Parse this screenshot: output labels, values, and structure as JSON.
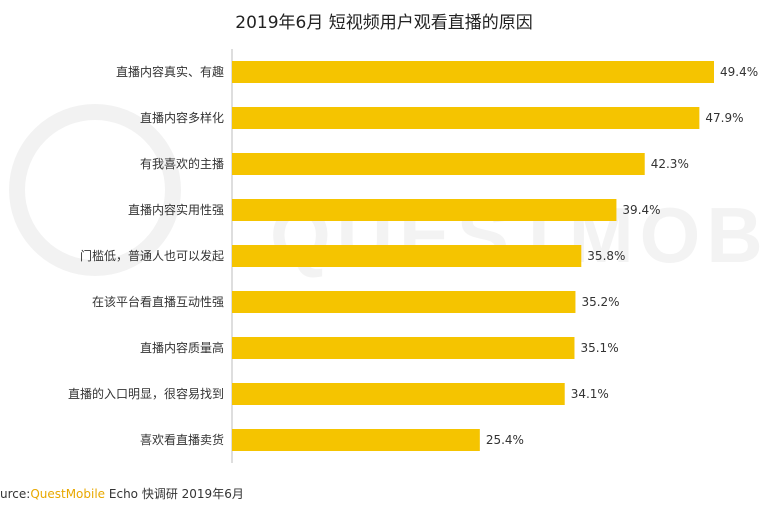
{
  "title": "2019年6月 短视频用户观看直播的原因",
  "source": {
    "prefix": "urce:",
    "brand": "QuestMobile",
    "rest": " Echo 快调研 2019年6月"
  },
  "colors": {
    "bar": "#F5C400",
    "axis": "#BDBDBD",
    "watermark": "#F2F2F2"
  },
  "chart_data": {
    "type": "bar",
    "orientation": "horizontal",
    "title": "2019年6月 短视频用户观看直播的原因",
    "categories": [
      "直播内容真实、有趣",
      "直播内容多样化",
      "有我喜欢的主播",
      "直播内容实用性强",
      "门槛低，普通人也可以发起",
      "在该平台看直播互动性强",
      "直播内容质量高",
      "直播的入口明显，很容易找到",
      "喜欢看直播卖货"
    ],
    "values": [
      49.4,
      47.9,
      42.3,
      39.4,
      35.8,
      35.2,
      35.1,
      34.1,
      25.4
    ],
    "value_labels": [
      "49.4%",
      "47.9%",
      "42.3%",
      "39.4%",
      "35.8%",
      "35.2%",
      "35.1%",
      "34.1%",
      "25.4%"
    ],
    "xlim": [
      0,
      49.4
    ]
  }
}
